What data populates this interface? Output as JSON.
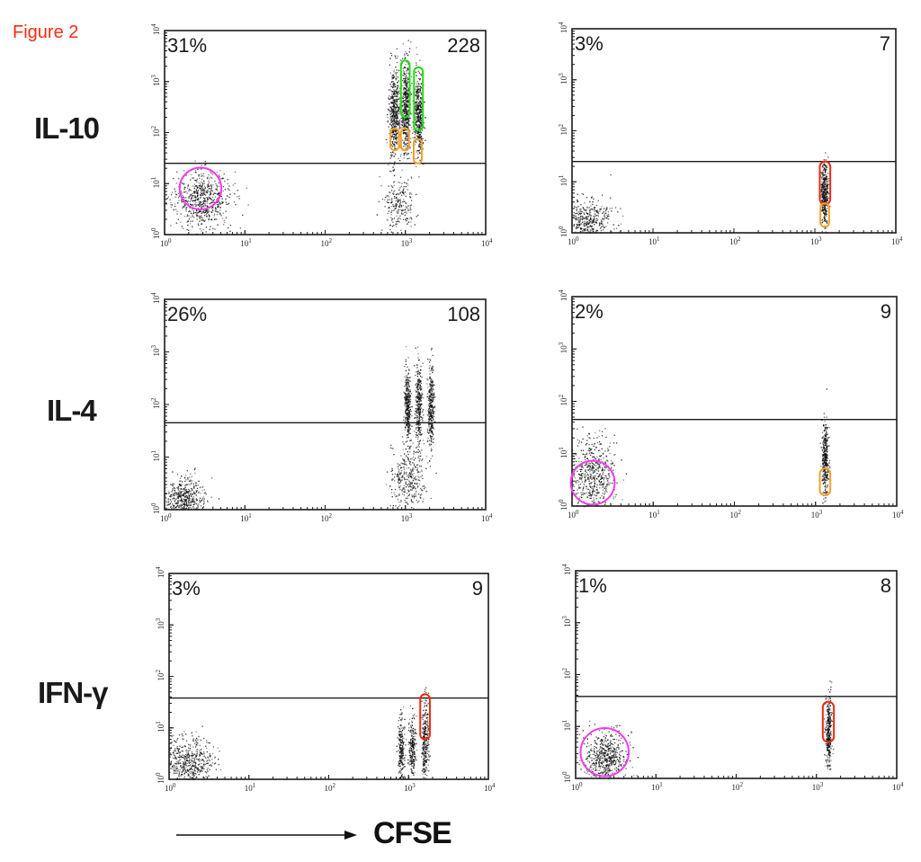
{
  "figure_title": "Figure 2",
  "x_axis_label": "CFSE",
  "colors": {
    "title": "#ff2a10",
    "magenta": "#f03cf0",
    "green": "#22dd11",
    "orange": "#f5a02a",
    "red": "#f02a10",
    "dots": "#111111"
  },
  "chart_data": [
    {
      "type": "scatter",
      "panel": "IL-10 left",
      "row_label": "IL-10",
      "title": "",
      "xlabel": "CFSE",
      "ylabel": "IL-10",
      "xscale": "log",
      "yscale": "log",
      "xlim": [
        1,
        10000
      ],
      "ylim": [
        1,
        10000
      ],
      "x_ticks": [
        "10^0",
        "10^1",
        "10^2",
        "10^3",
        "10^4"
      ],
      "y_ticks": [
        "10^0",
        "10^1",
        "10^2",
        "10^3",
        "10^4"
      ],
      "gate_y": 25,
      "percent_label": "31%",
      "count_label": "228",
      "clusters": [
        {
          "x": 2.8,
          "y": 5,
          "sx": 0.18,
          "sy": 0.28,
          "n": 650
        },
        {
          "x": 800,
          "y": 4,
          "sx": 0.1,
          "sy": 0.25,
          "n": 220
        },
        {
          "x": 720,
          "y": 220,
          "sx": 0.035,
          "sy": 0.45,
          "n": 520
        },
        {
          "x": 1000,
          "y": 300,
          "sx": 0.03,
          "sy": 0.45,
          "n": 520
        },
        {
          "x": 1450,
          "y": 220,
          "sx": 0.03,
          "sy": 0.42,
          "n": 480
        }
      ],
      "annotations": [
        {
          "shape": "circle",
          "color": "magenta",
          "x": 2.8,
          "y": 8,
          "r_decades": 0.26
        },
        {
          "shape": "capsule",
          "color": "green",
          "x0": 880,
          "x1": 1130,
          "y0": 200,
          "y1": 2600
        },
        {
          "shape": "capsule",
          "color": "green",
          "x0": 1280,
          "x1": 1650,
          "y0": 110,
          "y1": 1900
        },
        {
          "shape": "capsule",
          "color": "orange",
          "x0": 650,
          "x1": 830,
          "y0": 45,
          "y1": 120
        },
        {
          "shape": "capsule",
          "color": "orange",
          "x0": 880,
          "x1": 1110,
          "y0": 45,
          "y1": 120
        },
        {
          "shape": "capsule",
          "color": "orange",
          "x0": 1270,
          "x1": 1600,
          "y0": 25,
          "y1": 75
        }
      ]
    },
    {
      "type": "scatter",
      "panel": "IL-10 right",
      "row_label": "IL-10",
      "xscale": "log",
      "yscale": "log",
      "xlim": [
        1,
        10000
      ],
      "ylim": [
        1,
        10000
      ],
      "x_ticks": [
        "10^0",
        "10^1",
        "10^2",
        "10^3",
        "10^4"
      ],
      "y_ticks": [
        "10^0",
        "10^1",
        "10^2",
        "10^3",
        "10^4"
      ],
      "gate_y": 25,
      "percent_label": "3%",
      "count_label": "7",
      "clusters": [
        {
          "x": 1.6,
          "y": 1.6,
          "sx": 0.14,
          "sy": 0.22,
          "n": 420
        },
        {
          "x": 1300,
          "y": 6,
          "sx": 0.022,
          "sy": 0.3,
          "n": 420
        }
      ],
      "annotations": [
        {
          "shape": "capsule",
          "color": "red",
          "x0": 1150,
          "x1": 1550,
          "y0": 3.6,
          "y1": 25
        },
        {
          "shape": "capsule",
          "color": "orange",
          "x0": 1170,
          "x1": 1500,
          "y0": 1.3,
          "y1": 3.8
        }
      ]
    },
    {
      "type": "scatter",
      "panel": "IL-4 left",
      "row_label": "IL-4",
      "xscale": "log",
      "yscale": "log",
      "xlim": [
        1,
        10000
      ],
      "ylim": [
        1,
        10000
      ],
      "x_ticks": [
        "10^0",
        "10^1",
        "10^2",
        "10^3",
        "10^4"
      ],
      "y_ticks": [
        "10^0",
        "10^1",
        "10^2",
        "10^3",
        "10^4"
      ],
      "gate_y": 45,
      "percent_label": "26%",
      "count_label": "108",
      "clusters": [
        {
          "x": 1.7,
          "y": 1.6,
          "sx": 0.14,
          "sy": 0.2,
          "n": 520
        },
        {
          "x": 1050,
          "y": 4,
          "sx": 0.1,
          "sy": 0.3,
          "n": 330
        },
        {
          "x": 1050,
          "y": 100,
          "sx": 0.02,
          "sy": 0.35,
          "n": 350
        },
        {
          "x": 1450,
          "y": 90,
          "sx": 0.02,
          "sy": 0.4,
          "n": 330
        },
        {
          "x": 2050,
          "y": 90,
          "sx": 0.02,
          "sy": 0.4,
          "n": 330
        }
      ],
      "annotations": []
    },
    {
      "type": "scatter",
      "panel": "IL-4 right",
      "row_label": "IL-4",
      "xscale": "log",
      "yscale": "log",
      "xlim": [
        1,
        10000
      ],
      "ylim": [
        1,
        10000
      ],
      "x_ticks": [
        "10^0",
        "10^1",
        "10^2",
        "10^3",
        "10^4"
      ],
      "y_ticks": [
        "10^0",
        "10^1",
        "10^2",
        "10^3",
        "10^4"
      ],
      "gate_y": 45,
      "percent_label": "2%",
      "count_label": "9",
      "clusters": [
        {
          "x": 1.8,
          "y": 4,
          "sx": 0.13,
          "sy": 0.35,
          "n": 560
        },
        {
          "x": 1300,
          "y": 8,
          "sx": 0.02,
          "sy": 0.35,
          "n": 380
        }
      ],
      "annotations": [
        {
          "shape": "circle",
          "color": "magenta",
          "x": 1.8,
          "y": 2.8,
          "r_decades": 0.27
        },
        {
          "shape": "capsule",
          "color": "orange",
          "x0": 1130,
          "x1": 1520,
          "y0": 1.6,
          "y1": 5.2
        }
      ]
    },
    {
      "type": "scatter",
      "panel": "IFN-γ left",
      "row_label": "IFN-γ",
      "xscale": "log",
      "yscale": "log",
      "xlim": [
        1,
        10000
      ],
      "ylim": [
        1,
        10000
      ],
      "x_ticks": [
        "10^0",
        "10^1",
        "10^2",
        "10^3",
        "10^4"
      ],
      "y_ticks": [
        "10^0",
        "10^1",
        "10^2",
        "10^3",
        "10^4"
      ],
      "gate_y": 38,
      "percent_label": "3%",
      "count_label": "9",
      "clusters": [
        {
          "x": 1.7,
          "y": 2.2,
          "sx": 0.16,
          "sy": 0.25,
          "n": 560
        },
        {
          "x": 800,
          "y": 4,
          "sx": 0.02,
          "sy": 0.3,
          "n": 230
        },
        {
          "x": 1100,
          "y": 4,
          "sx": 0.02,
          "sy": 0.3,
          "n": 230
        },
        {
          "x": 1600,
          "y": 6,
          "sx": 0.02,
          "sy": 0.38,
          "n": 300
        }
      ],
      "annotations": [
        {
          "shape": "capsule",
          "color": "red",
          "x0": 1400,
          "x1": 1850,
          "y0": 6,
          "y1": 45
        }
      ]
    },
    {
      "type": "scatter",
      "panel": "IFN-γ right",
      "row_label": "IFN-γ",
      "xscale": "log",
      "yscale": "log",
      "xlim": [
        1,
        10000
      ],
      "ylim": [
        1,
        10000
      ],
      "x_ticks": [
        "10^0",
        "10^1",
        "10^2",
        "10^3",
        "10^4"
      ],
      "y_ticks": [
        "10^0",
        "10^1",
        "10^2",
        "10^3",
        "10^4"
      ],
      "gate_y": 38,
      "percent_label": "1%",
      "count_label": "8",
      "clusters": [
        {
          "x": 2.3,
          "y": 2.5,
          "sx": 0.13,
          "sy": 0.25,
          "n": 560
        },
        {
          "x": 1400,
          "y": 8,
          "sx": 0.018,
          "sy": 0.33,
          "n": 330
        }
      ],
      "annotations": [
        {
          "shape": "circle",
          "color": "magenta",
          "x": 2.3,
          "y": 3.2,
          "r_decades": 0.3
        },
        {
          "shape": "capsule",
          "color": "red",
          "x0": 1200,
          "x1": 1650,
          "y0": 5,
          "y1": 30
        }
      ]
    }
  ]
}
